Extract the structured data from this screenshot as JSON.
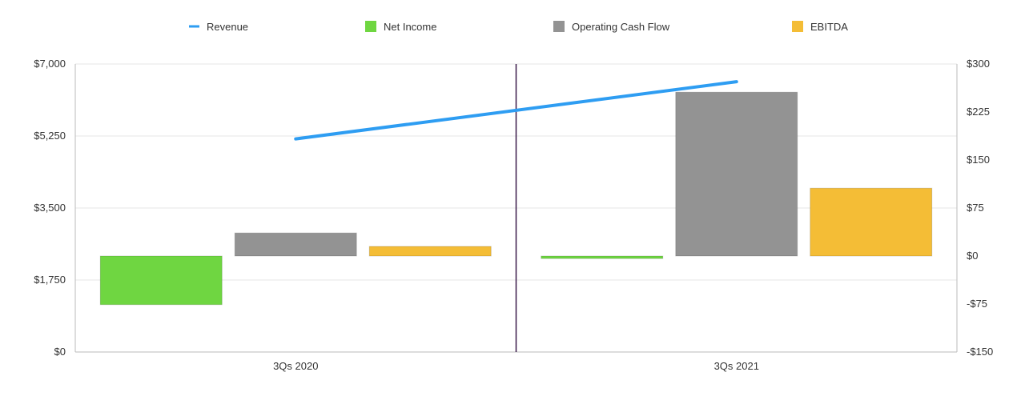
{
  "chart_data": {
    "type": "bar",
    "title": "",
    "xlabel": "",
    "categories": [
      "3Qs 2020",
      "3Qs 2021"
    ],
    "left_axis": {
      "ylabel": "",
      "ylim": [
        0,
        7000
      ],
      "ticks": [
        {
          "value": 0,
          "label": "$0"
        },
        {
          "value": 1750,
          "label": "$1,750"
        },
        {
          "value": 3500,
          "label": "$3,500"
        },
        {
          "value": 5250,
          "label": "$5,250"
        },
        {
          "value": 7000,
          "label": "$7,000"
        }
      ]
    },
    "right_axis": {
      "ylabel": "",
      "ylim": [
        -150,
        300
      ],
      "ticks": [
        {
          "value": -150,
          "label": "-$150"
        },
        {
          "value": -75,
          "label": "-$75"
        },
        {
          "value": 0,
          "label": "$0"
        },
        {
          "value": 75,
          "label": "$75"
        },
        {
          "value": 150,
          "label": "$150"
        },
        {
          "value": 225,
          "label": "$225"
        },
        {
          "value": 300,
          "label": "$300"
        }
      ]
    },
    "series": [
      {
        "name": "Revenue",
        "kind": "line",
        "axis": "left",
        "color": "#2e9df2",
        "values": [
          5180,
          6570
        ]
      },
      {
        "name": "Net Income",
        "kind": "bar",
        "axis": "right",
        "color": "#6fd641",
        "values": [
          -76,
          -4
        ]
      },
      {
        "name": "Operating Cash Flow",
        "kind": "bar",
        "axis": "right",
        "color": "#939393",
        "values": [
          36,
          256
        ]
      },
      {
        "name": "EBITDA",
        "kind": "bar",
        "axis": "right",
        "color": "#f4bd36",
        "values": [
          15,
          106
        ]
      }
    ],
    "legend_position": "top",
    "grid": true,
    "category_divider": true,
    "colors": {
      "divider": "#3a1a4a",
      "grid": "#e6e6e6",
      "axis": "#bbbbbb"
    }
  }
}
